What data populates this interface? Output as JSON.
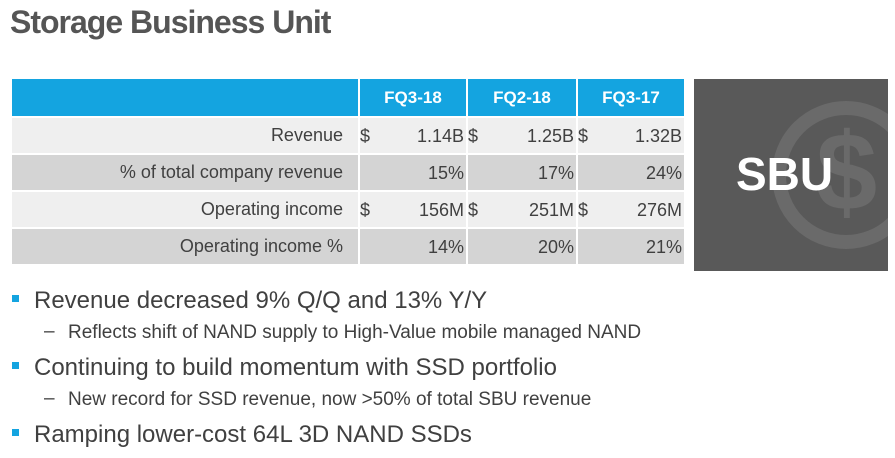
{
  "title": "Storage Business Unit",
  "table": {
    "headers": [
      "FQ3-18",
      "FQ2-18",
      "FQ3-17"
    ],
    "rows": [
      {
        "label": "Revenue",
        "c1": {
          "cur": "$",
          "val": "1.14B"
        },
        "c2": {
          "cur": "$",
          "val": "1.25B"
        },
        "c3": {
          "cur": "$",
          "val": "1.32B"
        }
      },
      {
        "label": "% of total company revenue",
        "c1": {
          "cur": "",
          "val": "15%"
        },
        "c2": {
          "cur": "",
          "val": "17%"
        },
        "c3": {
          "cur": "",
          "val": "24%"
        }
      },
      {
        "label": "Operating income",
        "c1": {
          "cur": "$",
          "val": "156M"
        },
        "c2": {
          "cur": "$",
          "val": "251M"
        },
        "c3": {
          "cur": "$",
          "val": "276M"
        }
      },
      {
        "label": "Operating income %",
        "c1": {
          "cur": "",
          "val": "14%"
        },
        "c2": {
          "cur": "",
          "val": "20%"
        },
        "c3": {
          "cur": "",
          "val": "21%"
        }
      }
    ]
  },
  "badge": {
    "label": "SBU",
    "icon": "dollar-coin-icon"
  },
  "bullets": [
    {
      "text": "Revenue decreased 9% Q/Q and 13% Y/Y",
      "sub": "Reflects shift of NAND supply to High-Value mobile managed NAND"
    },
    {
      "text": "Continuing to build momentum with SSD portfolio",
      "sub": "New record for SSD revenue, now >50% of total SBU revenue"
    },
    {
      "text": "Ramping lower-cost 64L 3D NAND SSDs",
      "sub": null
    }
  ],
  "colors": {
    "accent": "#14a4e0",
    "badge_bg": "#595959"
  }
}
